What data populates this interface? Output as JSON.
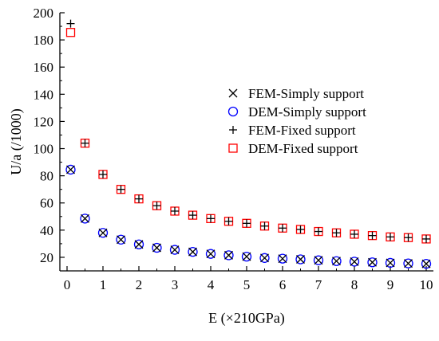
{
  "chart_data": {
    "type": "scatter",
    "title": "",
    "xlabel": "E (×210GPa)",
    "ylabel": "U/a (/1000)",
    "xlim": [
      -0.2,
      10.2
    ],
    "ylim": [
      10,
      200
    ],
    "xticks": [
      0,
      1,
      2,
      3,
      4,
      5,
      6,
      7,
      8,
      9,
      10
    ],
    "yticks": [
      20,
      40,
      60,
      80,
      100,
      120,
      140,
      160,
      180,
      200
    ],
    "legend_position": "right",
    "grid": false,
    "series": [
      {
        "name": "FEM-Simply support",
        "marker": "x",
        "color": "#000000",
        "x": [
          0.1,
          0.5,
          1,
          1.5,
          2,
          2.5,
          3,
          3.5,
          4,
          4.5,
          5,
          5.5,
          6,
          6.5,
          7,
          7.5,
          8,
          8.5,
          9,
          9.5,
          10
        ],
        "y": [
          84.5,
          48.5,
          38,
          33,
          29.5,
          27,
          25.5,
          24,
          22.5,
          21.5,
          20.5,
          19.5,
          19,
          18.5,
          17.8,
          17.2,
          16.8,
          16.3,
          15.9,
          15.5,
          15.2
        ]
      },
      {
        "name": "DEM-Simply support",
        "marker": "circle",
        "color": "#0000ff",
        "x": [
          0.1,
          0.5,
          1,
          1.5,
          2,
          2.5,
          3,
          3.5,
          4,
          4.5,
          5,
          5.5,
          6,
          6.5,
          7,
          7.5,
          8,
          8.5,
          9,
          9.5,
          10
        ],
        "y": [
          84.5,
          48.5,
          38,
          33,
          29.5,
          27,
          25.5,
          24,
          22.5,
          21.5,
          20.5,
          19.5,
          19,
          18.5,
          17.8,
          17.2,
          16.8,
          16.3,
          15.9,
          15.5,
          15.2
        ]
      },
      {
        "name": "FEM-Fixed support",
        "marker": "plus",
        "color": "#000000",
        "x": [
          0.1,
          0.5,
          1,
          1.5,
          2,
          2.5,
          3,
          3.5,
          4,
          4.5,
          5,
          5.5,
          6,
          6.5,
          7,
          7.5,
          8,
          8.5,
          9,
          9.5,
          10
        ],
        "y": [
          192,
          104,
          81,
          70,
          63,
          58,
          54,
          51,
          48.5,
          46.5,
          45,
          43,
          41.5,
          40.5,
          39,
          38,
          37,
          36,
          35,
          34.5,
          33.5
        ]
      },
      {
        "name": "DEM-Fixed support",
        "marker": "square",
        "color": "#ff0000",
        "x": [
          0.1,
          0.5,
          1,
          1.5,
          2,
          2.5,
          3,
          3.5,
          4,
          4.5,
          5,
          5.5,
          6,
          6.5,
          7,
          7.5,
          8,
          8.5,
          9,
          9.5,
          10
        ],
        "y": [
          185.5,
          104,
          81,
          70,
          63,
          58,
          54,
          51,
          48.5,
          46.5,
          45,
          43,
          41.5,
          40.5,
          39,
          38,
          37,
          36,
          35,
          34.5,
          33.5
        ]
      }
    ]
  }
}
